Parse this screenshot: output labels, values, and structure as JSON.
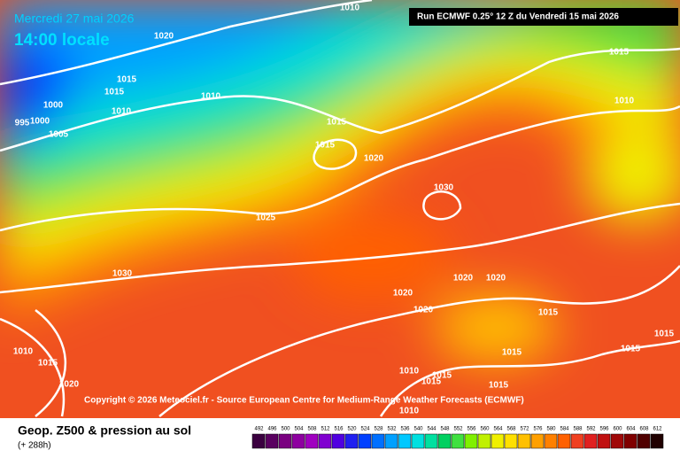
{
  "header": {
    "date": "Mercredi 27 mai 2026",
    "time": "14:00 locale",
    "run": "Run ECMWF 0.25° 12 Z du Vendredi 15 mai 2026"
  },
  "copyright": "Copyright © 2026 Meteociel.fr - Source European Centre for Medium-Range Weather Forecasts (ECMWF)",
  "isobar_labels": [
    1010,
    1020,
    1015,
    1015,
    1000,
    1010,
    1010,
    995,
    1000,
    1005,
    1015,
    1015,
    1020,
    1030,
    1025,
    1030,
    1015,
    1010,
    1020,
    1020,
    1020,
    1020,
    1015,
    1015,
    1015,
    1015,
    1010,
    1015,
    1015,
    1015,
    1010,
    1010,
    1015,
    1020
  ],
  "legend": {
    "title": "Geop. Z500 & pression au sol",
    "lead": "(+ 288h)",
    "levels": [
      492,
      496,
      500,
      504,
      508,
      512,
      516,
      520,
      524,
      528,
      532,
      536,
      540,
      544,
      548,
      552,
      556,
      560,
      564,
      568,
      572,
      576,
      580,
      584,
      588,
      592,
      596,
      600,
      604,
      608,
      612
    ],
    "colors": [
      "#3b0040",
      "#5a0060",
      "#7a0080",
      "#8e00a0",
      "#a000c0",
      "#8000d0",
      "#5000e0",
      "#2020f0",
      "#0040ff",
      "#0070ff",
      "#00a0ff",
      "#00c8ff",
      "#00e0e0",
      "#00e0a0",
      "#00d060",
      "#40e040",
      "#80f000",
      "#c0f000",
      "#f0f000",
      "#ffe000",
      "#ffc000",
      "#ffa000",
      "#ff8000",
      "#ff6000",
      "#f04020",
      "#e02020",
      "#c01010",
      "#a00808",
      "#800000",
      "#500000",
      "#200000"
    ]
  }
}
